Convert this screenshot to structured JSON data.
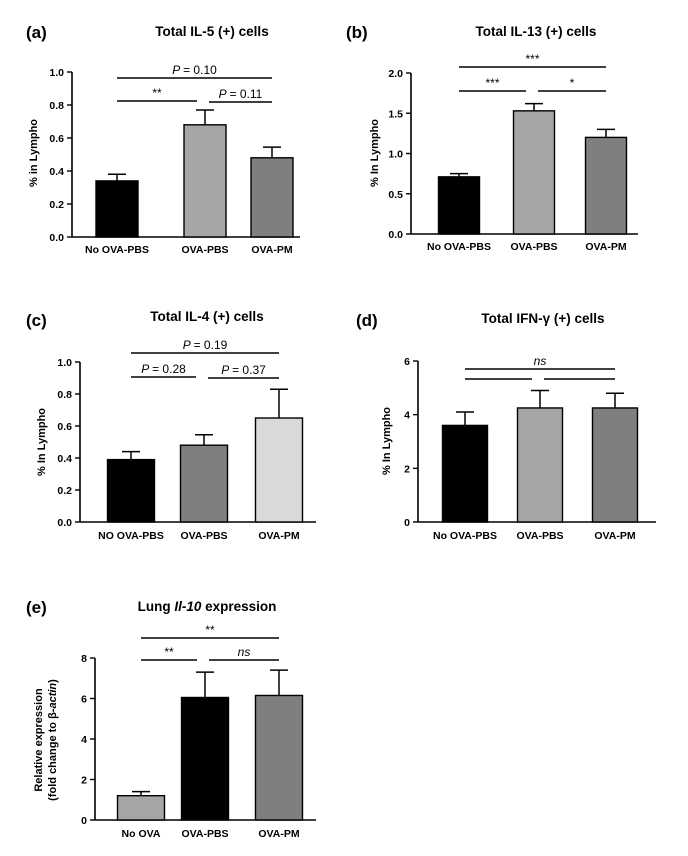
{
  "chart_data": [
    {
      "panel": "(a)",
      "type": "bar",
      "title": "Total IL-5 (+) cells",
      "ylabel": "% in Lympho",
      "categories": [
        "No OVA-PBS",
        "OVA-PBS",
        "OVA-PM"
      ],
      "values": [
        0.34,
        0.68,
        0.48
      ],
      "errors": [
        0.04,
        0.09,
        0.065
      ],
      "colors": [
        "#000000",
        "#a6a6a6",
        "#7f7f7f"
      ],
      "ylim": [
        0,
        1.0
      ],
      "yticks": [
        "0.0",
        "0.2",
        "0.4",
        "0.6",
        "0.8",
        "1.0"
      ],
      "yticks_num": [
        0,
        0.2,
        0.4,
        0.6,
        0.8,
        1.0
      ],
      "comparisons": [
        {
          "from": 0,
          "to": 2,
          "label": "= 0.10",
          "pval": true
        },
        {
          "from": 0,
          "to": 1,
          "label": "**"
        },
        {
          "from": 1,
          "to": 2,
          "label": "= 0.11",
          "pval": true
        }
      ]
    },
    {
      "panel": "(b)",
      "type": "bar",
      "title": "Total IL-13 (+) cells",
      "ylabel": "% In Lympho",
      "categories": [
        "No OVA-PBS",
        "OVA-PBS",
        "OVA-PM"
      ],
      "values": [
        0.71,
        1.53,
        1.2
      ],
      "errors": [
        0.04,
        0.09,
        0.1
      ],
      "colors": [
        "#000000",
        "#a6a6a6",
        "#7f7f7f"
      ],
      "ylim": [
        0,
        2.0
      ],
      "yticks": [
        "0.0",
        "0.5",
        "1.0",
        "1.5",
        "2.0"
      ],
      "yticks_num": [
        0,
        0.5,
        1.0,
        1.5,
        2.0
      ],
      "comparisons": [
        {
          "from": 0,
          "to": 2,
          "label": "***"
        },
        {
          "from": 0,
          "to": 1,
          "label": "***"
        },
        {
          "from": 1,
          "to": 2,
          "label": "*"
        }
      ]
    },
    {
      "panel": "(c)",
      "type": "bar",
      "title": "Total IL-4 (+) cells",
      "ylabel": "% In Lympho",
      "categories": [
        "NO OVA-PBS",
        "OVA-PBS",
        "OVA-PM"
      ],
      "values": [
        0.39,
        0.48,
        0.65
      ],
      "errors": [
        0.05,
        0.065,
        0.18
      ],
      "colors": [
        "#000000",
        "#7f7f7f",
        "#d9d9d9"
      ],
      "ylim": [
        0,
        1.0
      ],
      "yticks": [
        "0.0",
        "0.2",
        "0.4",
        "0.6",
        "0.8",
        "1.0"
      ],
      "yticks_num": [
        0,
        0.2,
        0.4,
        0.6,
        0.8,
        1.0
      ],
      "comparisons": [
        {
          "from": 0,
          "to": 2,
          "label": "= 0.19",
          "pval": true
        },
        {
          "from": 0,
          "to": 1,
          "label": "= 0.28",
          "pval": true
        },
        {
          "from": 1,
          "to": 2,
          "label": "= 0.37",
          "pval": true
        }
      ]
    },
    {
      "panel": "(d)",
      "type": "bar",
      "title": "Total IFN-γ (+) cells",
      "ylabel": "% In Lympho",
      "categories": [
        "No OVA-PBS",
        "OVA-PBS",
        "OVA-PM"
      ],
      "values": [
        3.6,
        4.25,
        4.25
      ],
      "errors": [
        0.5,
        0.65,
        0.55
      ],
      "colors": [
        "#000000",
        "#a6a6a6",
        "#7f7f7f"
      ],
      "ylim": [
        0,
        6
      ],
      "yticks": [
        "0",
        "2",
        "4",
        "6"
      ],
      "yticks_num": [
        0,
        2,
        4,
        6
      ],
      "comparisons": [
        {
          "from": 0,
          "to": 2,
          "label": "ns",
          "italic": true
        },
        {
          "from": 0,
          "to": 1,
          "label": ""
        },
        {
          "from": 1,
          "to": 2,
          "label": ""
        }
      ]
    },
    {
      "panel": "(e)",
      "type": "bar",
      "title_parts": [
        "Lung ",
        "Il-10",
        " expression"
      ],
      "ylabel_lines": [
        "Relative expression",
        "(fold change to β-actin)"
      ],
      "categories": [
        "No OVA",
        "OVA-PBS",
        "OVA-PM"
      ],
      "values": [
        1.2,
        6.05,
        6.15
      ],
      "errors": [
        0.2,
        1.25,
        1.25
      ],
      "colors": [
        "#a6a6a6",
        "#000000",
        "#7f7f7f"
      ],
      "ylim": [
        0,
        8
      ],
      "yticks": [
        "0",
        "2",
        "4",
        "6",
        "8"
      ],
      "yticks_num": [
        0,
        2,
        4,
        6,
        8
      ],
      "comparisons": [
        {
          "from": 0,
          "to": 2,
          "label": "**"
        },
        {
          "from": 0,
          "to": 1,
          "label": "**"
        },
        {
          "from": 1,
          "to": 2,
          "label": "ns",
          "italic": true
        }
      ]
    }
  ]
}
